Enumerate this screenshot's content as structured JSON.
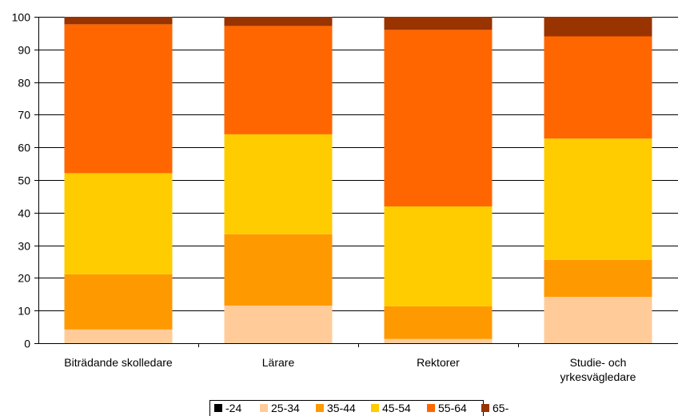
{
  "chart_data": {
    "type": "bar",
    "stacked": true,
    "categories": [
      [
        "Biträdande skolledare"
      ],
      [
        "Lärare"
      ],
      [
        "Rektorer"
      ],
      [
        "Studie- och",
        "yrkesvägledare"
      ]
    ],
    "series": [
      {
        "name": "-24",
        "color": "#000000",
        "values": [
          0,
          0,
          0,
          0
        ]
      },
      {
        "name": "25-34",
        "color": "#FFCC99",
        "values": [
          4.2,
          11.5,
          1.3,
          14.2
        ]
      },
      {
        "name": "35-44",
        "color": "#FF9900",
        "values": [
          16.9,
          21.9,
          10.0,
          11.3
        ]
      },
      {
        "name": "45-54",
        "color": "#FFCC00",
        "values": [
          31.0,
          30.6,
          30.6,
          37.2
        ]
      },
      {
        "name": "55-64",
        "color": "#FF6600",
        "values": [
          45.6,
          33.2,
          54.1,
          31.3
        ]
      },
      {
        "name": "65-",
        "color": "#993300",
        "values": [
          2.3,
          2.8,
          4.0,
          6.0
        ]
      }
    ],
    "ylim": [
      0,
      100
    ],
    "yticks": [
      0,
      10,
      20,
      30,
      40,
      50,
      60,
      70,
      80,
      90,
      100
    ],
    "gridlines": true,
    "legend": "bottom"
  }
}
